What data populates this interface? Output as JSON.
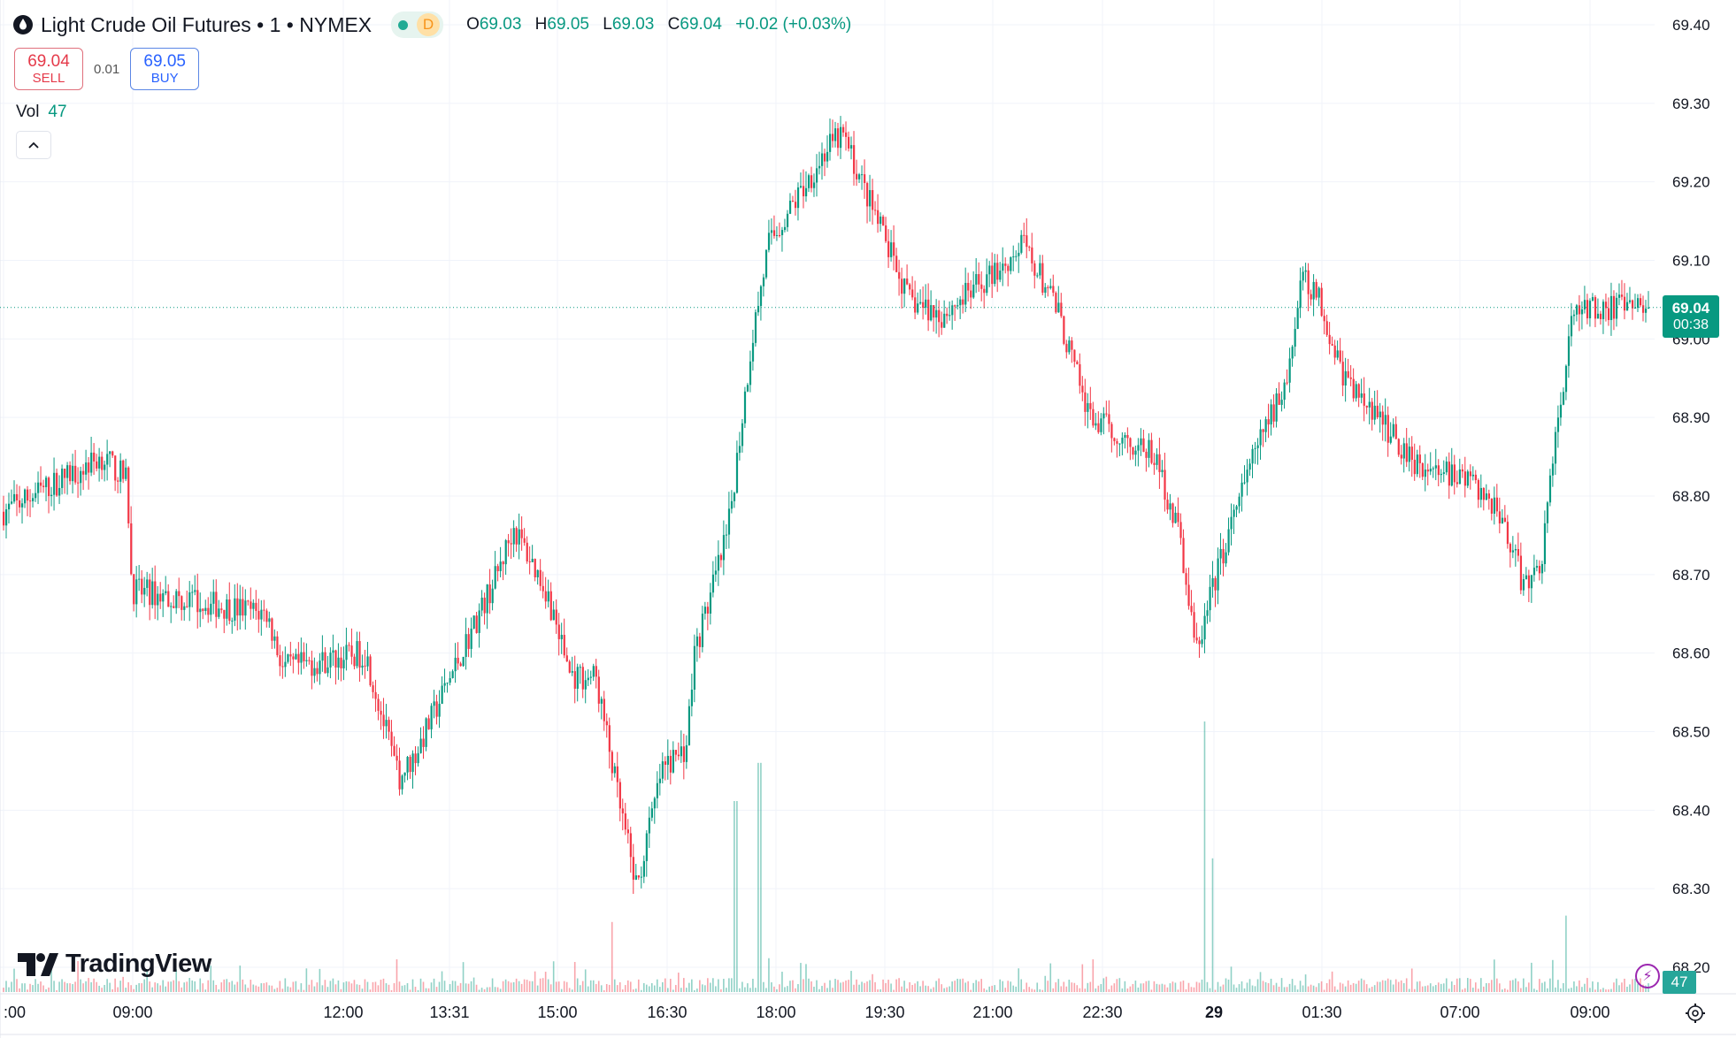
{
  "header": {
    "title": "Light Crude Oil Futures",
    "interval": "1",
    "exchange": "NYMEX",
    "status_letter": "D",
    "ohlc": {
      "o": "69.03",
      "h": "69.05",
      "l": "69.03",
      "c": "69.04",
      "change": "+0.02 (+0.03%)"
    }
  },
  "trade": {
    "sell_price": "69.04",
    "sell_label": "SELL",
    "spread": "0.01",
    "buy_price": "69.05",
    "buy_label": "BUY"
  },
  "volume_indicator": {
    "label": "Vol",
    "value": "47"
  },
  "last_price_badge": {
    "price": "69.04",
    "countdown": "00:38"
  },
  "volume_badge": "47",
  "logo": "TradingView",
  "colors": {
    "up": "#089981",
    "down": "#f23645",
    "accent": "#2962ff",
    "grid": "#f0f3fa"
  },
  "chart_data": {
    "type": "candlestick",
    "y_axis": {
      "min": 68.2,
      "max": 69.4,
      "ticks": [
        "69.40",
        "69.30",
        "69.20",
        "69.10",
        "69.00",
        "68.90",
        "68.80",
        "68.70",
        "68.60",
        "68.50",
        "68.40",
        "68.30",
        "68.20"
      ],
      "position": "right"
    },
    "x_axis": {
      "ticks": [
        ":00",
        "09:00",
        "12:00",
        "13:31",
        "15:00",
        "16:30",
        "18:00",
        "19:30",
        "21:00",
        "22:30",
        "29",
        "01:30",
        "07:00",
        "09:00"
      ]
    },
    "last_price": 69.04,
    "price_path": [
      [
        0,
        68.78
      ],
      [
        0.06,
        68.85
      ],
      [
        0.075,
        68.82
      ],
      [
        0.078,
        68.68
      ],
      [
        0.16,
        68.65
      ],
      [
        0.17,
        68.58
      ],
      [
        0.22,
        68.6
      ],
      [
        0.24,
        68.44
      ],
      [
        0.25,
        68.47
      ],
      [
        0.3,
        68.7
      ],
      [
        0.31,
        68.76
      ],
      [
        0.33,
        68.68
      ],
      [
        0.345,
        68.57
      ],
      [
        0.36,
        68.57
      ],
      [
        0.375,
        68.4
      ],
      [
        0.385,
        68.3
      ],
      [
        0.4,
        68.45
      ],
      [
        0.415,
        68.48
      ],
      [
        0.42,
        68.6
      ],
      [
        0.44,
        68.75
      ],
      [
        0.455,
        69.0
      ],
      [
        0.465,
        69.12
      ],
      [
        0.5,
        69.24
      ],
      [
        0.51,
        69.26
      ],
      [
        0.535,
        69.13
      ],
      [
        0.55,
        69.05
      ],
      [
        0.57,
        69.03
      ],
      [
        0.6,
        69.08
      ],
      [
        0.62,
        69.12
      ],
      [
        0.64,
        69.04
      ],
      [
        0.66,
        68.9
      ],
      [
        0.7,
        68.85
      ],
      [
        0.715,
        68.75
      ],
      [
        0.725,
        68.6
      ],
      [
        0.74,
        68.72
      ],
      [
        0.76,
        68.85
      ],
      [
        0.78,
        68.95
      ],
      [
        0.79,
        69.08
      ],
      [
        0.8,
        69.05
      ],
      [
        0.815,
        68.95
      ],
      [
        0.835,
        68.9
      ],
      [
        0.86,
        68.84
      ],
      [
        0.89,
        68.82
      ],
      [
        0.91,
        68.78
      ],
      [
        0.925,
        68.68
      ],
      [
        0.935,
        68.72
      ],
      [
        0.945,
        68.9
      ],
      [
        0.955,
        69.04
      ]
    ],
    "volume_spikes": [
      [
        0.37,
        22
      ],
      [
        0.445,
        60
      ],
      [
        0.46,
        72
      ],
      [
        0.73,
        85
      ],
      [
        0.735,
        42
      ],
      [
        0.95,
        24
      ]
    ]
  }
}
